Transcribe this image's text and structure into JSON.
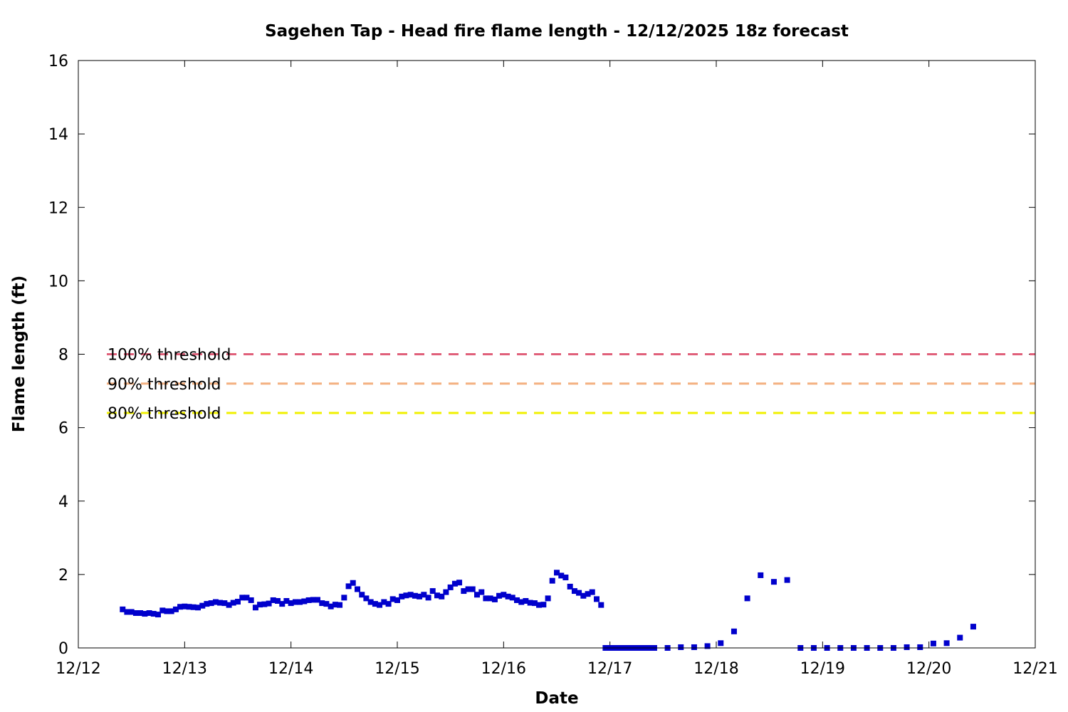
{
  "chart_data": {
    "type": "scatter",
    "title": "Sagehen Tap - Head fire flame length - 12/12/2025 18z forecast",
    "xlabel": "Date",
    "ylabel": "Flame length (ft)",
    "x_unit": "days since 12/12 00:00 (axis ticks labeled as dates)",
    "xlim": [
      0,
      9
    ],
    "ylim": [
      0,
      16
    ],
    "x_ticks": [
      "12/12",
      "12/13",
      "12/14",
      "12/15",
      "12/16",
      "12/17",
      "12/18",
      "12/19",
      "12/20",
      "12/21"
    ],
    "y_ticks": [
      "0",
      "2",
      "4",
      "6",
      "8",
      "10",
      "12",
      "14",
      "16"
    ],
    "grid": false,
    "marker_color": "#0000cc",
    "thresholds": [
      {
        "label": "100% threshold",
        "value": 8.0,
        "color": "#e0607a"
      },
      {
        "label": "90% threshold",
        "value": 7.2,
        "color": "#f4b080"
      },
      {
        "label": "80% threshold",
        "value": 6.4,
        "color": "#f0f000"
      }
    ],
    "series": [
      {
        "name": "",
        "points": [
          [
            0.417,
            1.05
          ],
          [
            0.458,
            0.98
          ],
          [
            0.5,
            0.98
          ],
          [
            0.542,
            0.95
          ],
          [
            0.583,
            0.95
          ],
          [
            0.625,
            0.93
          ],
          [
            0.667,
            0.95
          ],
          [
            0.708,
            0.93
          ],
          [
            0.75,
            0.91
          ],
          [
            0.792,
            1.02
          ],
          [
            0.833,
            1.0
          ],
          [
            0.875,
            1.0
          ],
          [
            0.917,
            1.05
          ],
          [
            0.958,
            1.12
          ],
          [
            1.0,
            1.13
          ],
          [
            1.042,
            1.12
          ],
          [
            1.083,
            1.11
          ],
          [
            1.125,
            1.1
          ],
          [
            1.167,
            1.15
          ],
          [
            1.208,
            1.2
          ],
          [
            1.25,
            1.22
          ],
          [
            1.292,
            1.25
          ],
          [
            1.333,
            1.23
          ],
          [
            1.375,
            1.22
          ],
          [
            1.417,
            1.17
          ],
          [
            1.458,
            1.23
          ],
          [
            1.5,
            1.26
          ],
          [
            1.542,
            1.37
          ],
          [
            1.583,
            1.37
          ],
          [
            1.625,
            1.3
          ],
          [
            1.667,
            1.1
          ],
          [
            1.708,
            1.18
          ],
          [
            1.75,
            1.19
          ],
          [
            1.792,
            1.21
          ],
          [
            1.833,
            1.3
          ],
          [
            1.875,
            1.28
          ],
          [
            1.917,
            1.2
          ],
          [
            1.958,
            1.28
          ],
          [
            2.0,
            1.22
          ],
          [
            2.042,
            1.25
          ],
          [
            2.083,
            1.25
          ],
          [
            2.125,
            1.27
          ],
          [
            2.167,
            1.3
          ],
          [
            2.208,
            1.31
          ],
          [
            2.25,
            1.31
          ],
          [
            2.292,
            1.22
          ],
          [
            2.333,
            1.2
          ],
          [
            2.375,
            1.13
          ],
          [
            2.417,
            1.18
          ],
          [
            2.458,
            1.17
          ],
          [
            2.5,
            1.37
          ],
          [
            2.542,
            1.68
          ],
          [
            2.583,
            1.77
          ],
          [
            2.625,
            1.6
          ],
          [
            2.667,
            1.45
          ],
          [
            2.708,
            1.35
          ],
          [
            2.75,
            1.25
          ],
          [
            2.792,
            1.2
          ],
          [
            2.833,
            1.17
          ],
          [
            2.875,
            1.25
          ],
          [
            2.917,
            1.2
          ],
          [
            2.958,
            1.33
          ],
          [
            3.0,
            1.3
          ],
          [
            3.042,
            1.4
          ],
          [
            3.083,
            1.43
          ],
          [
            3.125,
            1.45
          ],
          [
            3.167,
            1.42
          ],
          [
            3.208,
            1.4
          ],
          [
            3.25,
            1.45
          ],
          [
            3.292,
            1.37
          ],
          [
            3.333,
            1.55
          ],
          [
            3.375,
            1.43
          ],
          [
            3.417,
            1.4
          ],
          [
            3.458,
            1.52
          ],
          [
            3.5,
            1.65
          ],
          [
            3.542,
            1.75
          ],
          [
            3.583,
            1.78
          ],
          [
            3.625,
            1.55
          ],
          [
            3.667,
            1.6
          ],
          [
            3.708,
            1.6
          ],
          [
            3.75,
            1.45
          ],
          [
            3.792,
            1.52
          ],
          [
            3.833,
            1.35
          ],
          [
            3.875,
            1.35
          ],
          [
            3.917,
            1.32
          ],
          [
            3.958,
            1.42
          ],
          [
            4.0,
            1.45
          ],
          [
            4.042,
            1.4
          ],
          [
            4.083,
            1.37
          ],
          [
            4.125,
            1.3
          ],
          [
            4.167,
            1.25
          ],
          [
            4.208,
            1.28
          ],
          [
            4.25,
            1.23
          ],
          [
            4.292,
            1.22
          ],
          [
            4.333,
            1.17
          ],
          [
            4.375,
            1.18
          ],
          [
            4.417,
            1.35
          ],
          [
            4.458,
            1.83
          ],
          [
            4.5,
            2.05
          ],
          [
            4.542,
            1.97
          ],
          [
            4.583,
            1.92
          ],
          [
            4.625,
            1.67
          ],
          [
            4.667,
            1.55
          ],
          [
            4.708,
            1.5
          ],
          [
            4.75,
            1.42
          ],
          [
            4.792,
            1.47
          ],
          [
            4.833,
            1.52
          ],
          [
            4.875,
            1.33
          ],
          [
            4.917,
            1.17
          ],
          [
            4.958,
            0.0
          ],
          [
            5.0,
            0.0
          ],
          [
            5.042,
            0.0
          ],
          [
            5.083,
            0.0
          ],
          [
            5.125,
            0.0
          ],
          [
            5.167,
            0.0
          ],
          [
            5.208,
            0.0
          ],
          [
            5.25,
            0.0
          ],
          [
            5.292,
            0.0
          ],
          [
            5.333,
            0.0
          ],
          [
            5.375,
            0.0
          ],
          [
            5.417,
            0.0
          ],
          [
            5.542,
            0.0
          ],
          [
            5.667,
            0.02
          ],
          [
            5.792,
            0.02
          ],
          [
            5.917,
            0.05
          ],
          [
            6.042,
            0.13
          ],
          [
            6.167,
            0.45
          ],
          [
            6.292,
            1.35
          ],
          [
            6.417,
            1.98
          ],
          [
            6.542,
            1.8
          ],
          [
            6.667,
            1.85
          ],
          [
            6.792,
            0.0
          ],
          [
            6.917,
            0.0
          ],
          [
            7.042,
            0.0
          ],
          [
            7.167,
            0.0
          ],
          [
            7.292,
            0.0
          ],
          [
            7.417,
            0.0
          ],
          [
            7.542,
            0.0
          ],
          [
            7.667,
            0.0
          ],
          [
            7.792,
            0.02
          ],
          [
            7.917,
            0.02
          ],
          [
            8.042,
            0.12
          ],
          [
            8.167,
            0.13
          ],
          [
            8.292,
            0.28
          ],
          [
            8.417,
            0.58
          ]
        ]
      }
    ]
  }
}
